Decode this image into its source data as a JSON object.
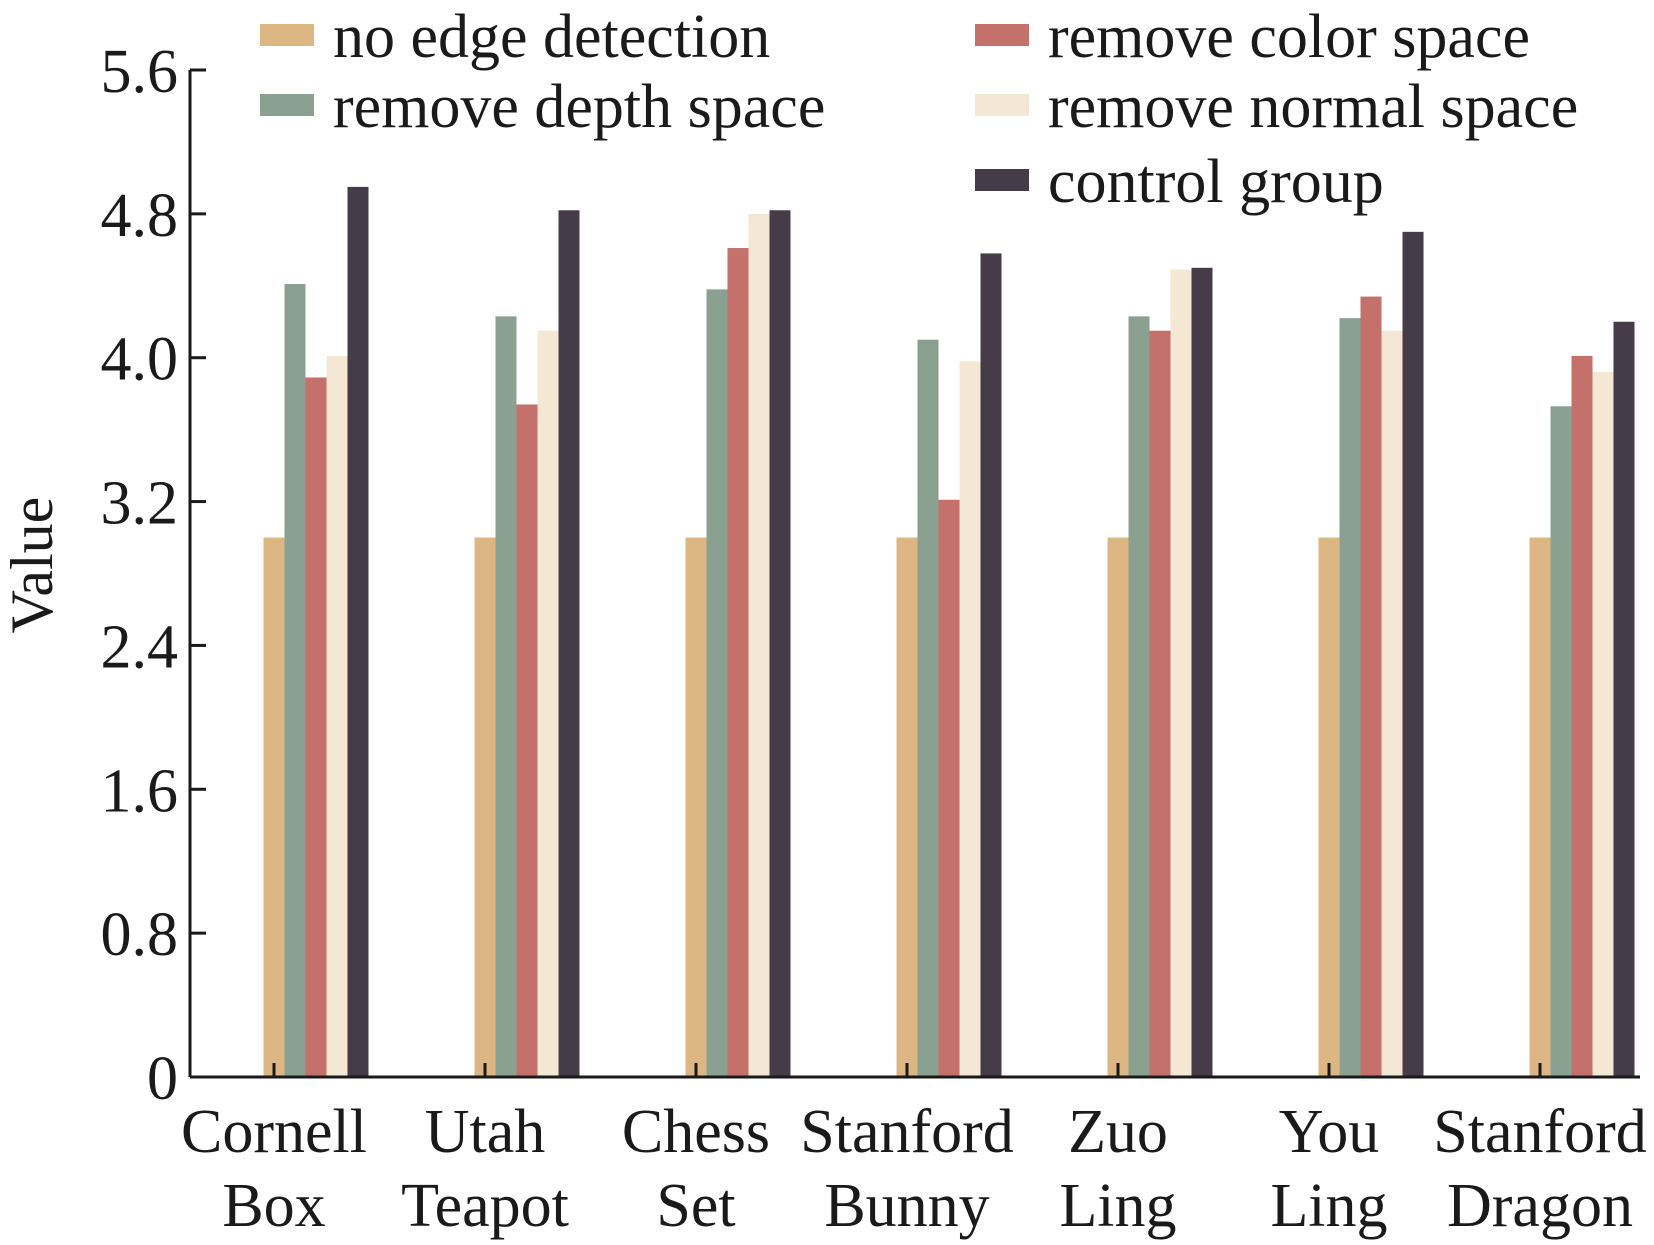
{
  "chart_data": {
    "type": "bar",
    "title": "",
    "xlabel": "",
    "ylabel": "Value",
    "ylim": [
      0,
      5.6
    ],
    "yticks": [
      "0",
      "0.8",
      "1.6",
      "2.4",
      "3.2",
      "4.0",
      "4.8",
      "5.6"
    ],
    "grid": false,
    "legend_position": "top",
    "categories": [
      [
        "Cornell",
        "Box"
      ],
      [
        "Utah",
        "Teapot"
      ],
      [
        "Chess",
        "Set"
      ],
      [
        "Stanford",
        "Bunny"
      ],
      [
        "Zuo",
        "Ling"
      ],
      [
        "You",
        "Ling"
      ],
      [
        "Stanford",
        "Dragon"
      ]
    ],
    "series": [
      {
        "name": "no edge detection",
        "color": "#ddb783",
        "values": [
          3.0,
          3.0,
          3.0,
          3.0,
          3.0,
          3.0,
          3.0
        ]
      },
      {
        "name": "remove depth space",
        "color": "#8aa091",
        "values": [
          4.41,
          4.23,
          4.38,
          4.1,
          4.23,
          4.22,
          3.73
        ]
      },
      {
        "name": "remove color space",
        "color": "#c3716a",
        "values": [
          3.89,
          3.74,
          4.61,
          3.21,
          4.15,
          4.34,
          4.01
        ]
      },
      {
        "name": "remove normal space",
        "color": "#f4e7d3",
        "values": [
          4.01,
          4.15,
          4.8,
          3.98,
          4.49,
          4.15,
          3.92
        ]
      },
      {
        "name": "control group",
        "color": "#463b48",
        "values": [
          4.95,
          4.82,
          4.82,
          4.58,
          4.5,
          4.7,
          4.2
        ]
      }
    ]
  }
}
